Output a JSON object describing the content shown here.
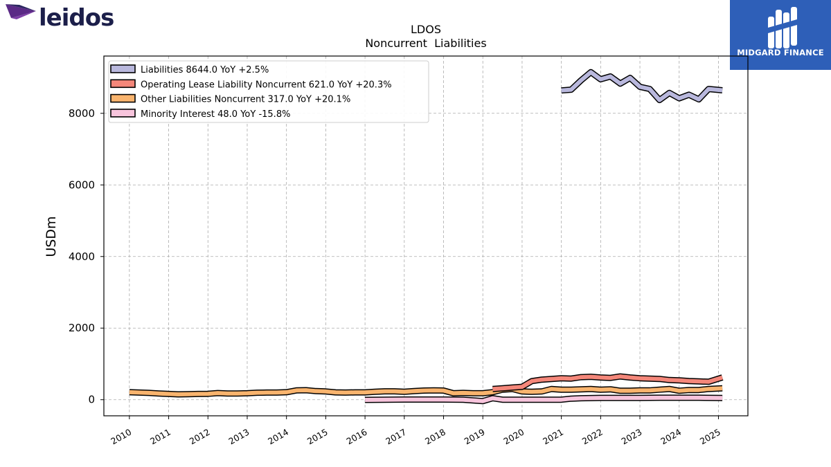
{
  "brand": {
    "name": "leidos"
  },
  "publisher": {
    "name": "MIDGARD FINANCE"
  },
  "chart_data": {
    "type": "line",
    "title": "LDOS",
    "subtitle": "Noncurrent  Liabilities",
    "ylabel": "USDm",
    "xlabel": "",
    "ylim": [
      -450,
      9600
    ],
    "xlim": [
      2009.35,
      2025.75
    ],
    "yticks": [
      0,
      2000,
      4000,
      6000,
      8000
    ],
    "xticks": [
      "2010",
      "2011",
      "2012",
      "2013",
      "2014",
      "2015",
      "2016",
      "2017",
      "2018",
      "2019",
      "2020",
      "2021",
      "2022",
      "2023",
      "2024",
      "2025"
    ],
    "grid": true,
    "legend_position": "top-left",
    "series": [
      {
        "name": "Liabilities",
        "legend": "Liabilities  8644.0 YoY +2.5%",
        "color": "#b9b8dd",
        "x": [
          2021.0,
          2021.25,
          2021.5,
          2021.75,
          2022.0,
          2022.25,
          2022.5,
          2022.75,
          2023.0,
          2023.25,
          2023.5,
          2023.75,
          2024.0,
          2024.25,
          2024.5,
          2024.75,
          2025.1
        ],
        "y": [
          8640,
          8660,
          8920,
          9150,
          8950,
          9030,
          8830,
          8990,
          8740,
          8680,
          8370,
          8570,
          8420,
          8520,
          8390,
          8680,
          8644
        ]
      },
      {
        "name": "Operating Lease Liability Noncurrent",
        "legend": "Operating Lease Liability Noncurrent  621.0 YoY +20.3%",
        "color": "#f4877a",
        "x": [
          2019.25,
          2019.5,
          2019.75,
          2020.0,
          2020.25,
          2020.5,
          2020.75,
          2021.0,
          2021.25,
          2021.5,
          2021.75,
          2022.0,
          2022.25,
          2022.5,
          2022.75,
          2023.0,
          2023.25,
          2023.5,
          2023.75,
          2024.0,
          2024.25,
          2024.5,
          2024.75,
          2025.1
        ],
        "y": [
          300,
          320,
          340,
          360,
          520,
          560,
          580,
          600,
          590,
          630,
          640,
          620,
          610,
          650,
          620,
          600,
          590,
          580,
          550,
          540,
          520,
          510,
          500,
          621
        ]
      },
      {
        "name": "Other Liabilities Noncurrent",
        "legend": "Other Liabilities Noncurrent  317.0 YoY +20.1%",
        "color": "#f9b46e",
        "x": [
          2010.0,
          2010.25,
          2010.5,
          2010.75,
          2011.0,
          2011.25,
          2011.5,
          2011.75,
          2012.0,
          2012.25,
          2012.5,
          2012.75,
          2013.0,
          2013.25,
          2013.5,
          2013.75,
          2014.0,
          2014.25,
          2014.5,
          2014.75,
          2015.0,
          2015.25,
          2015.5,
          2015.75,
          2016.0,
          2016.25,
          2016.5,
          2016.75,
          2017.0,
          2017.25,
          2017.5,
          2017.75,
          2018.0,
          2018.25,
          2018.5,
          2018.75,
          2019.0,
          2019.25,
          2019.5,
          2019.75,
          2020.0,
          2020.25,
          2020.5,
          2020.75,
          2021.0,
          2021.25,
          2021.5,
          2021.75,
          2022.0,
          2022.25,
          2022.5,
          2022.75,
          2023.0,
          2023.25,
          2023.5,
          2023.75,
          2024.0,
          2024.25,
          2024.5,
          2024.75,
          2025.1
        ],
        "y": [
          210,
          200,
          190,
          175,
          160,
          150,
          155,
          160,
          165,
          185,
          175,
          175,
          180,
          195,
          200,
          200,
          210,
          260,
          265,
          240,
          230,
          205,
          200,
          205,
          205,
          220,
          235,
          235,
          220,
          240,
          255,
          260,
          255,
          180,
          190,
          180,
          180,
          210,
          280,
          300,
          230,
          220,
          230,
          300,
          280,
          280,
          290,
          300,
          280,
          290,
          250,
          250,
          260,
          260,
          280,
          300,
          250,
          270,
          270,
          300,
          317
        ]
      },
      {
        "name": "Minority Interest",
        "legend": "Minority Interest  48.0 YoY -15.8%",
        "color": "#f7c4dc",
        "x": [
          2016.0,
          2016.5,
          2017.0,
          2017.5,
          2018.0,
          2018.5,
          2019.0,
          2019.25,
          2019.5,
          2020.0,
          2020.5,
          2021.0,
          2021.25,
          2021.5,
          2022.0,
          2022.5,
          2023.0,
          2023.5,
          2024.0,
          2024.5,
          2025.1
        ],
        "y": [
          -5,
          0,
          5,
          5,
          5,
          0,
          -40,
          40,
          0,
          0,
          0,
          0,
          30,
          40,
          50,
          50,
          50,
          55,
          55,
          55,
          48
        ]
      }
    ]
  }
}
